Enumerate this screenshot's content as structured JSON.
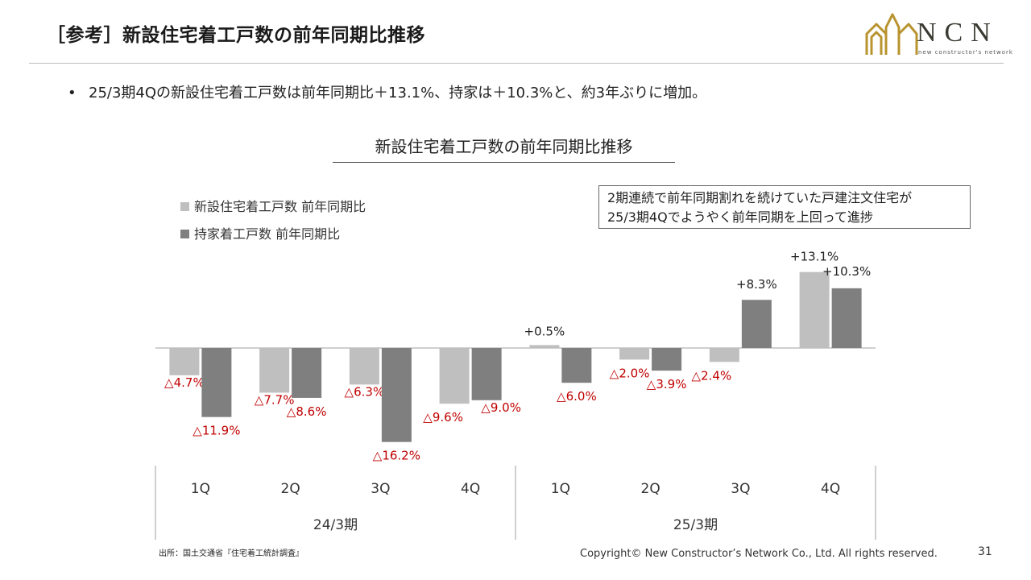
{
  "header": {
    "title": "［参考］新設住宅着工戸数の前年同期比推移",
    "logo_text": "NCN",
    "logo_sub": "new constructor's network"
  },
  "bullet": {
    "marker": "•",
    "text": "25/3期4Qの新設住宅着工戸数は前年同期比＋13.1%、持家は＋10.3%と、約3年ぶりに増加。"
  },
  "callout": {
    "line1": "2期連続で前年同期割れを続けていた戸建注文住宅が",
    "line2": "25/3期4Qでようやく前年同期を上回って進捗"
  },
  "chart_data": {
    "type": "bar",
    "title": "新設住宅着工戸数の前年同期比推移",
    "xlabel": "",
    "ylabel": "",
    "categories": [
      "1Q",
      "2Q",
      "3Q",
      "4Q",
      "1Q",
      "2Q",
      "3Q",
      "4Q"
    ],
    "groups": [
      {
        "label": "24/3期",
        "span": 4
      },
      {
        "label": "25/3期",
        "span": 4
      }
    ],
    "series": [
      {
        "name": "新設住宅着工戸数 前年同期比",
        "color": "#bfbfbf",
        "values": [
          -4.7,
          -7.7,
          -6.3,
          -9.6,
          0.5,
          -2.0,
          -2.4,
          13.1
        ],
        "labels": [
          "△4.7%",
          "△7.7%",
          "△6.3%",
          "△9.6%",
          "+0.5%",
          "△2.0%",
          "△2.4%",
          "+13.1%"
        ]
      },
      {
        "name": "持家着工戸数 前年同期比",
        "color": "#7f7f7f",
        "values": [
          -11.9,
          -8.6,
          -16.2,
          -9.0,
          -6.0,
          -3.9,
          8.3,
          10.3
        ],
        "labels": [
          "△11.9%",
          "△8.6%",
          "△16.2%",
          "△9.0%",
          "△6.0%",
          "△3.9%",
          "+8.3%",
          "+10.3%"
        ]
      }
    ],
    "negative_label_color": "#c00000",
    "positive_label_color": "#222222",
    "legend": "top-left",
    "grid": false
  },
  "footer": {
    "source": "出所：国土交通省『住宅着工統計調査』",
    "copyright": "Copyright© New Constructor’s Network Co., Ltd. All rights reserved.",
    "page": "31"
  }
}
